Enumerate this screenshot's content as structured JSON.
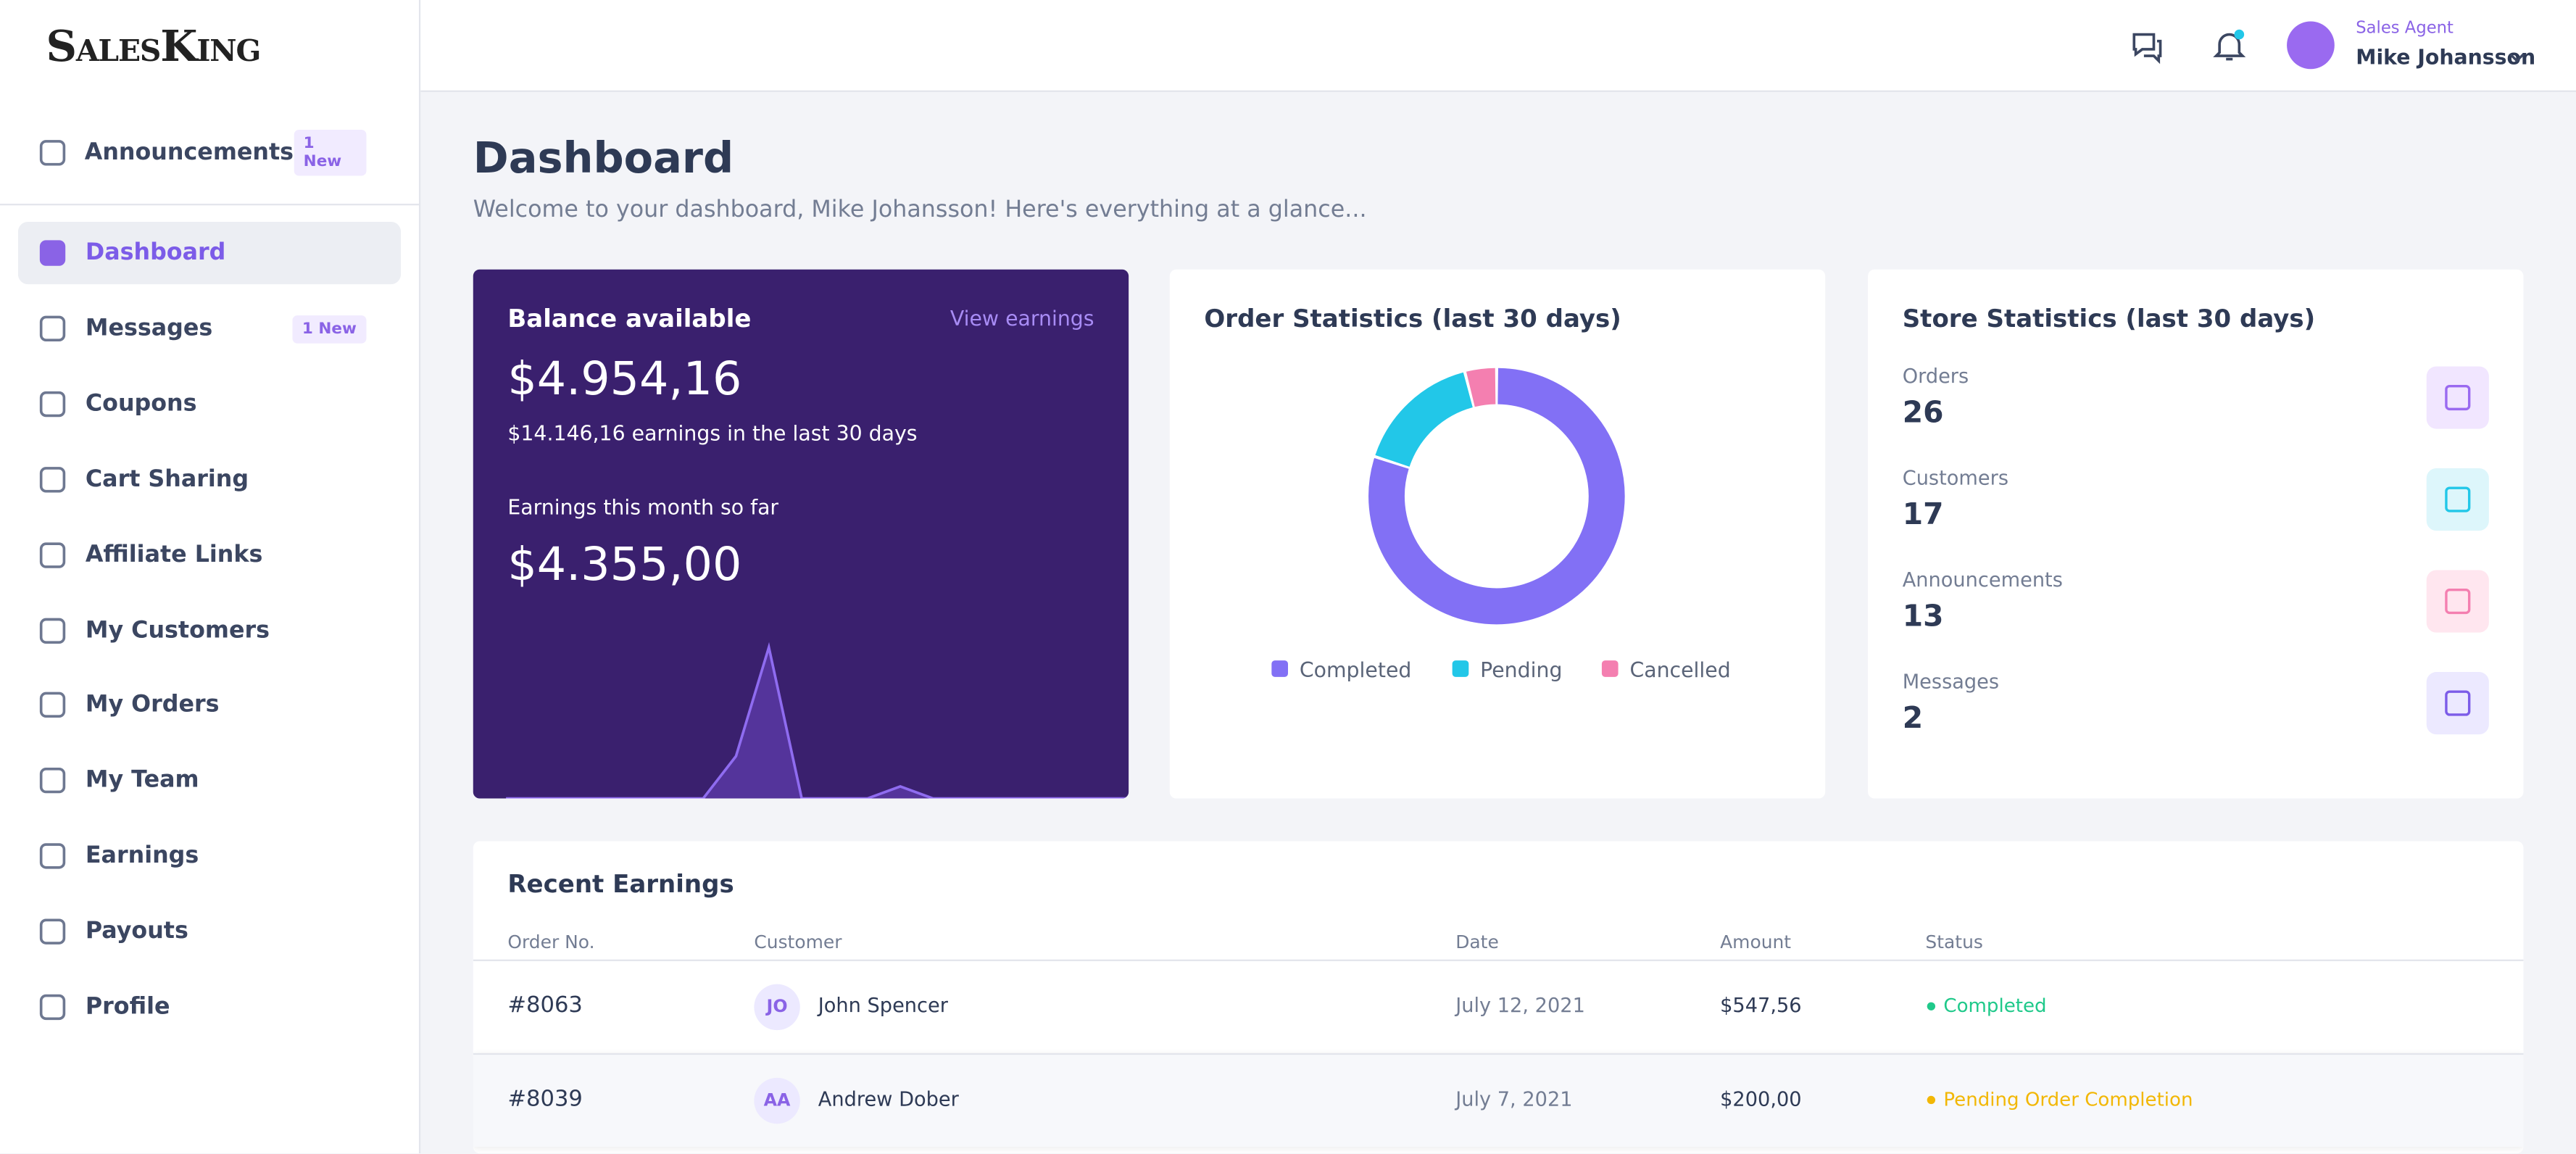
{
  "logo": "SalesKing",
  "nav": [
    {
      "label": "Announcements",
      "badge": "1 New"
    },
    {
      "label": "Dashboard"
    },
    {
      "label": "Messages",
      "badge": "1 New"
    },
    {
      "label": "Coupons"
    },
    {
      "label": "Cart Sharing"
    },
    {
      "label": "Affiliate Links"
    },
    {
      "label": "My Customers"
    },
    {
      "label": "My Orders"
    },
    {
      "label": "My Team"
    },
    {
      "label": "Earnings"
    },
    {
      "label": "Payouts"
    },
    {
      "label": "Profile"
    }
  ],
  "user": {
    "role": "Sales Agent",
    "name": "Mike Johansson"
  },
  "page": {
    "title": "Dashboard",
    "subtitle": "Welcome to your dashboard, Mike Johansson! Here's everything at a glance..."
  },
  "balance": {
    "title": "Balance available",
    "link": "View earnings",
    "amount": "$4.954,16",
    "recent_amount": "$14.146,16",
    "recent_text": "earnings in the last 30 days",
    "month_label": "Earnings this month so far",
    "month_amount": "$4.355,00",
    "trend": [
      0,
      0,
      0,
      0,
      0,
      0,
      0,
      28,
      100,
      0,
      0,
      0,
      8,
      0,
      0,
      0,
      0,
      0,
      0,
      0
    ]
  },
  "order_stats": {
    "title": "Order Statistics (last 30 days)",
    "series": [
      {
        "name": "Completed",
        "color": "#8270f5",
        "value": 80
      },
      {
        "name": "Pending",
        "color": "#22c7e8",
        "value": 16
      },
      {
        "name": "Cancelled",
        "color": "#f47fb0",
        "value": 4
      }
    ]
  },
  "store_stats": {
    "title": "Store Statistics (last 30 days)",
    "items": [
      {
        "label": "Orders",
        "value": 26
      },
      {
        "label": "Customers",
        "value": 17
      },
      {
        "label": "Announcements",
        "value": 13
      },
      {
        "label": "Messages",
        "value": 2
      }
    ]
  },
  "recent": {
    "title": "Recent Earnings",
    "columns": [
      "Order No.",
      "Customer",
      "Date",
      "Amount",
      "Status"
    ],
    "rows": [
      {
        "order": "#8063",
        "initials": "JO",
        "customer": "John Spencer",
        "date": "July 12, 2021",
        "amount": "$547,56",
        "status": "Completed"
      },
      {
        "order": "#8039",
        "initials": "AA",
        "customer": "Andrew Dober",
        "date": "July 7, 2021",
        "amount": "$200,00",
        "status": "Pending Order Completion"
      }
    ]
  }
}
